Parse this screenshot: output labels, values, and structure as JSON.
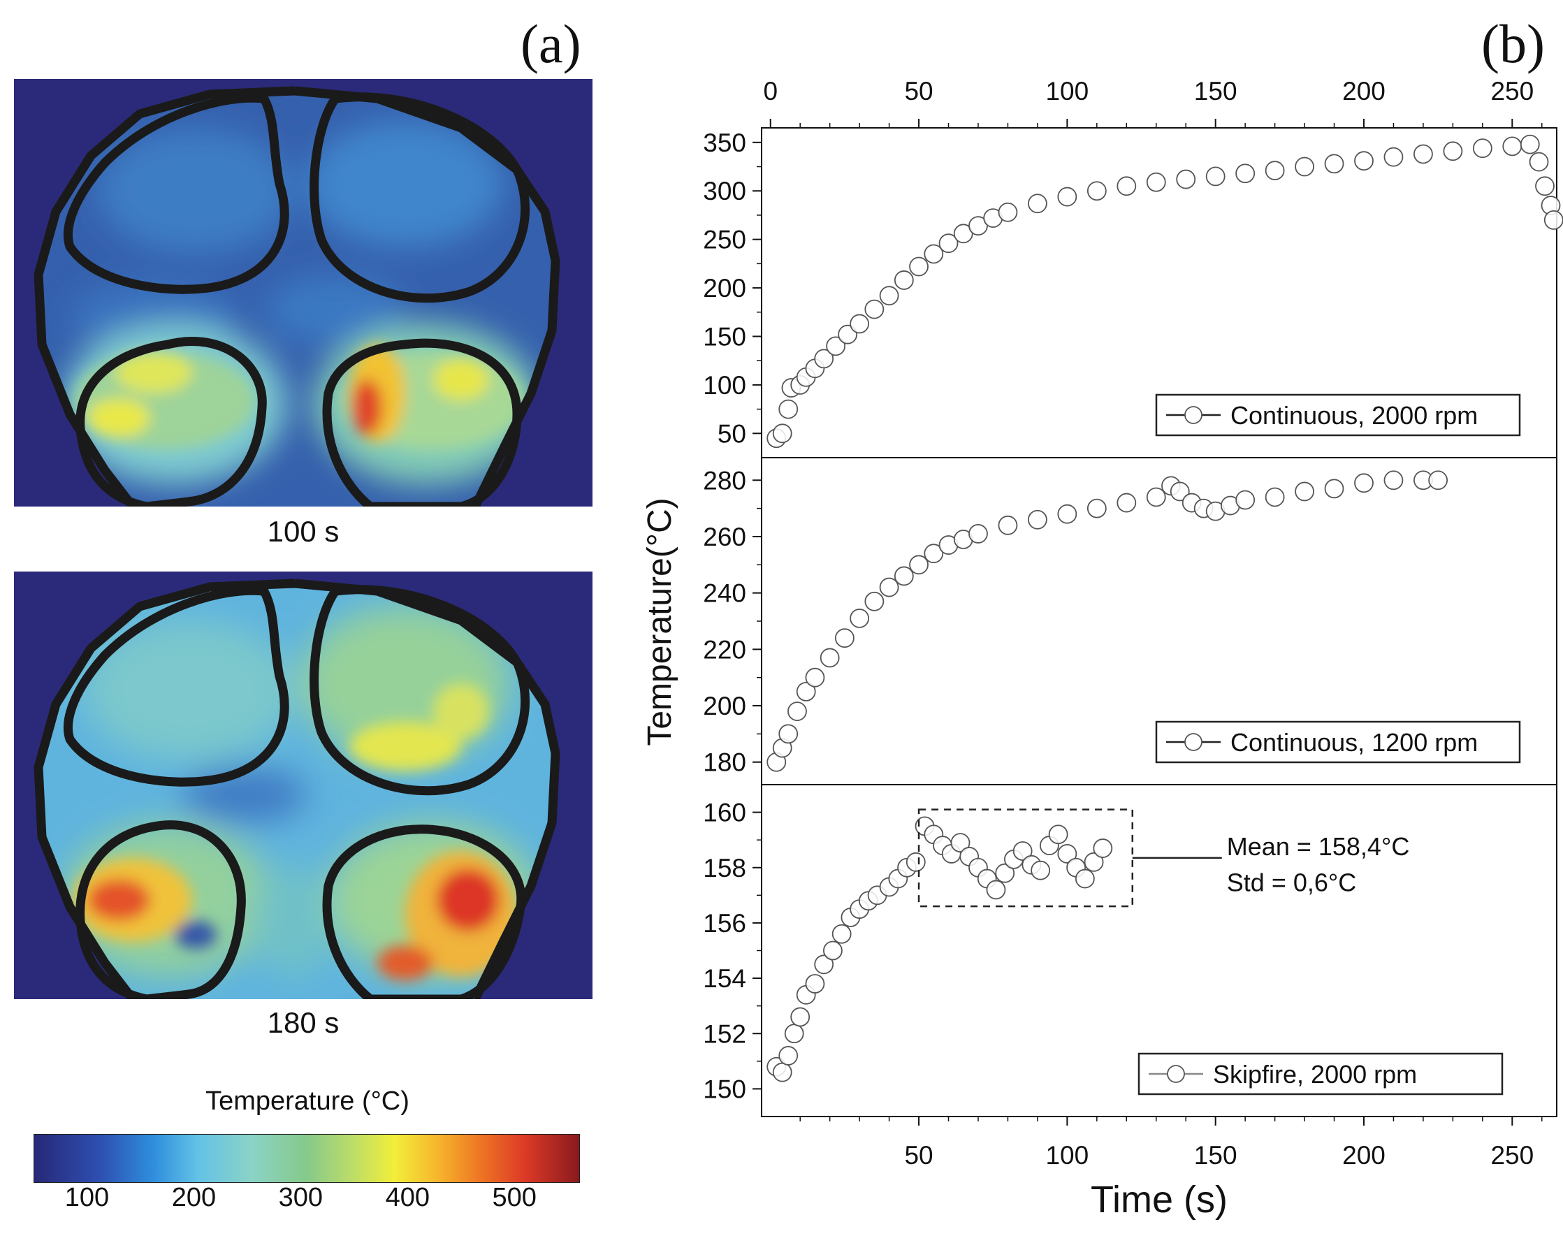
{
  "panel_a": {
    "label": "(a)",
    "frames": [
      {
        "caption": "100 s"
      },
      {
        "caption": "180 s"
      }
    ],
    "colorbar": {
      "title": "Temperature (°C)",
      "ticks": [
        "100",
        "200",
        "300",
        "400",
        "500"
      ],
      "tick_values": [
        100,
        200,
        300,
        400,
        500
      ],
      "range": [
        50,
        560
      ]
    }
  },
  "panel_b": {
    "label": "(b)"
  },
  "colors": {
    "marker_edge": "#555555",
    "frame": "#111111"
  },
  "chart_data": {
    "type": "scatter",
    "ylabel": "Temperature(°C)",
    "xlabel": "Time (s)",
    "xlim": [
      -3,
      265
    ],
    "top_x_ticks": [
      0,
      50,
      100,
      150,
      200,
      250
    ],
    "bottom_x_ticks": [
      50,
      100,
      150,
      200,
      250
    ],
    "subplots": [
      {
        "name": "Continuous, 2000 rpm",
        "legend": "Continuous, 2000 rpm",
        "ylim": [
          25,
          365
        ],
        "yticks": [
          50,
          100,
          150,
          200,
          250,
          300,
          350
        ],
        "points": [
          [
            2,
            45
          ],
          [
            4,
            50
          ],
          [
            6,
            75
          ],
          [
            7,
            97
          ],
          [
            10,
            100
          ],
          [
            12,
            108
          ],
          [
            15,
            117
          ],
          [
            18,
            127
          ],
          [
            22,
            140
          ],
          [
            26,
            152
          ],
          [
            30,
            163
          ],
          [
            35,
            178
          ],
          [
            40,
            192
          ],
          [
            45,
            208
          ],
          [
            50,
            222
          ],
          [
            55,
            235
          ],
          [
            60,
            246
          ],
          [
            65,
            256
          ],
          [
            70,
            264
          ],
          [
            75,
            272
          ],
          [
            80,
            278
          ],
          [
            90,
            287
          ],
          [
            100,
            294
          ],
          [
            110,
            300
          ],
          [
            120,
            305
          ],
          [
            130,
            309
          ],
          [
            140,
            312
          ],
          [
            150,
            315
          ],
          [
            160,
            318
          ],
          [
            170,
            321
          ],
          [
            180,
            325
          ],
          [
            190,
            328
          ],
          [
            200,
            331
          ],
          [
            210,
            335
          ],
          [
            220,
            338
          ],
          [
            230,
            341
          ],
          [
            240,
            344
          ],
          [
            250,
            346
          ],
          [
            256,
            348
          ],
          [
            259,
            330
          ],
          [
            261,
            305
          ],
          [
            263,
            285
          ],
          [
            264,
            270
          ]
        ]
      },
      {
        "name": "Continuous, 1200 rpm",
        "legend": "Continuous, 1200 rpm",
        "ylim": [
          172,
          288
        ],
        "yticks": [
          180,
          200,
          220,
          240,
          260,
          280
        ],
        "points": [
          [
            2,
            180
          ],
          [
            4,
            185
          ],
          [
            6,
            190
          ],
          [
            9,
            198
          ],
          [
            12,
            205
          ],
          [
            15,
            210
          ],
          [
            20,
            217
          ],
          [
            25,
            224
          ],
          [
            30,
            231
          ],
          [
            35,
            237
          ],
          [
            40,
            242
          ],
          [
            45,
            246
          ],
          [
            50,
            250
          ],
          [
            55,
            254
          ],
          [
            60,
            257
          ],
          [
            65,
            259
          ],
          [
            70,
            261
          ],
          [
            80,
            264
          ],
          [
            90,
            266
          ],
          [
            100,
            268
          ],
          [
            110,
            270
          ],
          [
            120,
            272
          ],
          [
            130,
            274
          ],
          [
            135,
            278
          ],
          [
            138,
            276
          ],
          [
            142,
            272
          ],
          [
            146,
            270
          ],
          [
            150,
            269
          ],
          [
            155,
            271
          ],
          [
            160,
            273
          ],
          [
            170,
            274
          ],
          [
            180,
            276
          ],
          [
            190,
            277
          ],
          [
            200,
            279
          ],
          [
            210,
            280
          ],
          [
            220,
            280
          ],
          [
            225,
            280
          ]
        ]
      },
      {
        "name": "Skipfire, 2000 rpm",
        "legend": "Skipfire, 2000 rpm",
        "ylim": [
          149,
          161
        ],
        "yticks": [
          150,
          152,
          154,
          156,
          158,
          160
        ],
        "points": [
          [
            2,
            150.8
          ],
          [
            4,
            150.6
          ],
          [
            6,
            151.2
          ],
          [
            8,
            152.0
          ],
          [
            10,
            152.6
          ],
          [
            12,
            153.4
          ],
          [
            15,
            153.8
          ],
          [
            18,
            154.5
          ],
          [
            21,
            155.0
          ],
          [
            24,
            155.6
          ],
          [
            27,
            156.2
          ],
          [
            30,
            156.5
          ],
          [
            33,
            156.8
          ],
          [
            36,
            157.0
          ],
          [
            40,
            157.3
          ],
          [
            43,
            157.6
          ],
          [
            46,
            158.0
          ],
          [
            49,
            158.2
          ],
          [
            52,
            159.5
          ],
          [
            55,
            159.2
          ],
          [
            58,
            158.8
          ],
          [
            61,
            158.5
          ],
          [
            64,
            158.9
          ],
          [
            67,
            158.4
          ],
          [
            70,
            158.0
          ],
          [
            73,
            157.6
          ],
          [
            76,
            157.2
          ],
          [
            79,
            157.8
          ],
          [
            82,
            158.3
          ],
          [
            85,
            158.6
          ],
          [
            88,
            158.1
          ],
          [
            91,
            157.9
          ],
          [
            94,
            158.8
          ],
          [
            97,
            159.2
          ],
          [
            100,
            158.5
          ],
          [
            103,
            158.0
          ],
          [
            106,
            157.6
          ],
          [
            109,
            158.2
          ],
          [
            112,
            158.7
          ]
        ],
        "annotation": {
          "mean": "Mean = 158,4°C",
          "std": "Std = 0,6°C",
          "box": {
            "x": [
              50,
              122
            ],
            "y": [
              156.6,
              160.1
            ]
          }
        }
      }
    ]
  }
}
